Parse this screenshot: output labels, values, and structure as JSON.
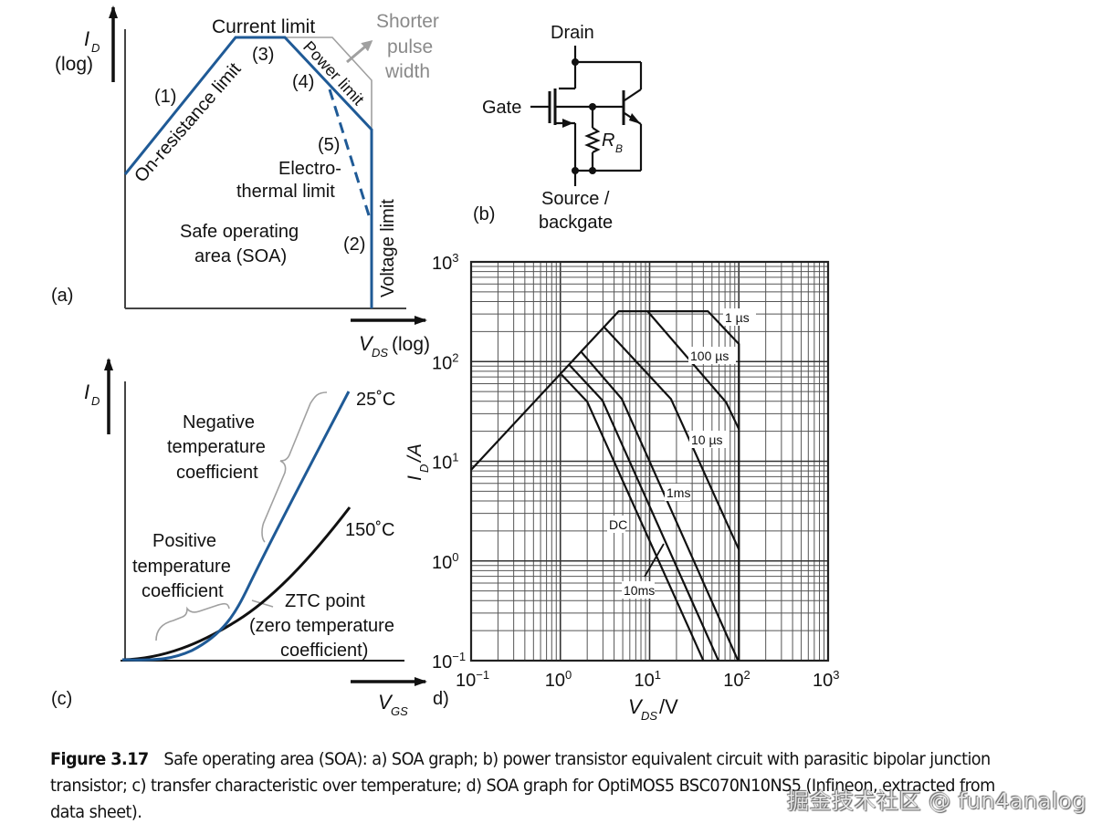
{
  "panel_a": {
    "label": "(a)",
    "y_axis": {
      "symbol": "I",
      "subscript": "D",
      "scale": "(log)"
    },
    "x_axis": {
      "symbol": "V",
      "subscript": "DS",
      "scale": "(log)"
    },
    "annotations": {
      "current_limit": "Current limit",
      "on_resistance_limit": "On-resistance limit",
      "power_limit": "Power limit",
      "voltage_limit": "Voltage limit",
      "electrothermal_line1": "Electro-",
      "electrothermal_line2": "thermal limit",
      "soa_line1": "Safe operating",
      "soa_line2": "area (SOA)",
      "shorter_line1": "Shorter",
      "shorter_line2": "pulse",
      "shorter_line3": "width",
      "n1": "(1)",
      "n2": "(2)",
      "n3": "(3)",
      "n4": "(4)",
      "n5": "(5)"
    },
    "colors": {
      "limit_line": "#1f5a96",
      "shorter_pulse": "#a0a0a0"
    }
  },
  "panel_b": {
    "label": "(b)",
    "drain": "Drain",
    "gate": "Gate",
    "source_line1": "Source /",
    "source_line2": "backgate",
    "resistor": {
      "symbol": "R",
      "subscript": "B"
    }
  },
  "panel_c": {
    "label": "(c)",
    "y_axis": {
      "symbol": "I",
      "subscript": "D"
    },
    "x_axis": {
      "symbol": "V",
      "subscript": "GS"
    },
    "curve_25": "25˚C",
    "curve_150": "150˚C",
    "negative_line1": "Negative",
    "negative_line2": "temperature",
    "negative_line3": "coefficient",
    "positive_line1": "Positive",
    "positive_line2": "temperature",
    "positive_line3": "coefficient",
    "ztc_line1": "ZTC point",
    "ztc_line2": "(zero temperature",
    "ztc_line3": "coefficient)",
    "colors": {
      "curve_25": "#1f5a96",
      "curve_150": "#111111"
    }
  },
  "chart_data": {
    "type": "line",
    "panel_label": "d)",
    "title": "",
    "xlabel": {
      "symbol": "V",
      "subscript": "DS",
      "unit": "/V"
    },
    "ylabel": {
      "symbol": "I",
      "subscript": "D",
      "unit": "/A"
    },
    "xscale": "log",
    "yscale": "log",
    "xlim": [
      0.1,
      1000
    ],
    "ylim": [
      0.1,
      1000
    ],
    "grid": true,
    "x_ticks": [
      {
        "base": "10",
        "exp": "−1"
      },
      {
        "base": "10",
        "exp": "0"
      },
      {
        "base": "10",
        "exp": "1"
      },
      {
        "base": "10",
        "exp": "2"
      },
      {
        "base": "10",
        "exp": "3"
      }
    ],
    "y_ticks": [
      {
        "base": "10",
        "exp": "−1"
      },
      {
        "base": "10",
        "exp": "0"
      },
      {
        "base": "10",
        "exp": "1"
      },
      {
        "base": "10",
        "exp": "2"
      },
      {
        "base": "10",
        "exp": "3"
      }
    ],
    "series": [
      {
        "name": "1 µs",
        "points": [
          [
            0.1,
            8.2
          ],
          [
            4.5,
            320
          ],
          [
            45,
            320
          ],
          [
            100,
            150
          ],
          [
            100,
            0.1
          ]
        ]
      },
      {
        "name": "100 µs",
        "points": [
          [
            9.5,
            320
          ],
          [
            72,
            39
          ],
          [
            100,
            21
          ]
        ]
      },
      {
        "name": "10 µs",
        "points": [
          [
            3.1,
            221
          ],
          [
            17.4,
            42
          ],
          [
            100,
            1.3
          ]
        ]
      },
      {
        "name": "1ms",
        "points": [
          [
            1.7,
            126
          ],
          [
            4.9,
            42
          ],
          [
            98,
            0.1
          ]
        ]
      },
      {
        "name": "10ms",
        "points": [
          [
            1.27,
            92
          ],
          [
            2.95,
            41
          ],
          [
            59,
            0.1
          ]
        ]
      },
      {
        "name": "DC",
        "points": [
          [
            1.03,
            74
          ],
          [
            2.0,
            39.5
          ],
          [
            40,
            0.1
          ]
        ]
      }
    ],
    "annotations": [
      "1 µs",
      "100 µs",
      "10 µs",
      "1ms",
      "DC",
      "10ms"
    ]
  },
  "caption": {
    "figure_label": "Figure 3.17",
    "text": "Safe operating area (SOA): a) SOA graph; b) power transistor equivalent circuit with parasitic bipolar junction transistor; c) transfer characteristic over temperature; d) SOA graph for OptiMOS5 BSC070N10NS5 (Infineon, extracted from data sheet)."
  },
  "watermark": "掘金技术社区 @ fun4analog"
}
